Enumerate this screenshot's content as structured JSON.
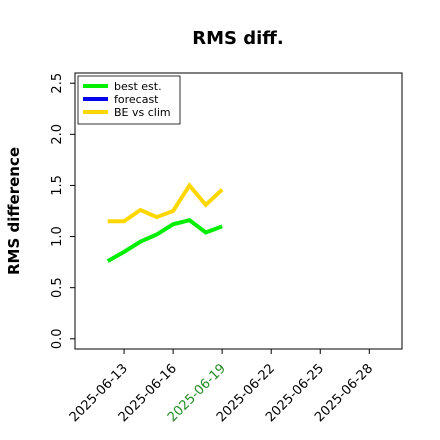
{
  "chart_data": {
    "type": "line",
    "title": "RMS diff.",
    "y_label": "RMS difference",
    "x": [
      "2025-06-12",
      "2025-06-13",
      "2025-06-14",
      "2025-06-15",
      "2025-06-16",
      "2025-06-17",
      "2025-06-18",
      "2025-06-19"
    ],
    "series": [
      {
        "name": "best est.",
        "color": "#00ee00",
        "values": [
          0.76,
          0.85,
          0.95,
          1.02,
          1.12,
          1.16,
          1.04,
          1.1
        ]
      },
      {
        "name": "forecast",
        "color": "#0000ee",
        "values": [
          null,
          null,
          null,
          null,
          null,
          null,
          null,
          null
        ]
      },
      {
        "name": "BE vs clim",
        "color": "#ffd700",
        "values": [
          1.15,
          1.15,
          1.26,
          1.19,
          1.25,
          1.5,
          1.31,
          1.46
        ]
      }
    ],
    "xlim": [
      "2025-06-10",
      "2025-06-30"
    ],
    "xticks": [
      "2025-06-13",
      "2025-06-16",
      "2025-06-19",
      "2025-06-22",
      "2025-06-25",
      "2025-06-28"
    ],
    "xtick_colors": [
      "#000000",
      "#000000",
      "#228b22",
      "#000000",
      "#000000",
      "#000000"
    ],
    "ylim": [
      -0.1,
      2.6
    ],
    "yticks": [
      0.0,
      0.5,
      1.0,
      1.5,
      2.0,
      2.5
    ],
    "ytick_labels": [
      "0.0",
      "0.5",
      "1.0",
      "1.5",
      "2.0",
      "2.5"
    ],
    "legend": "upper left",
    "grid": false
  }
}
